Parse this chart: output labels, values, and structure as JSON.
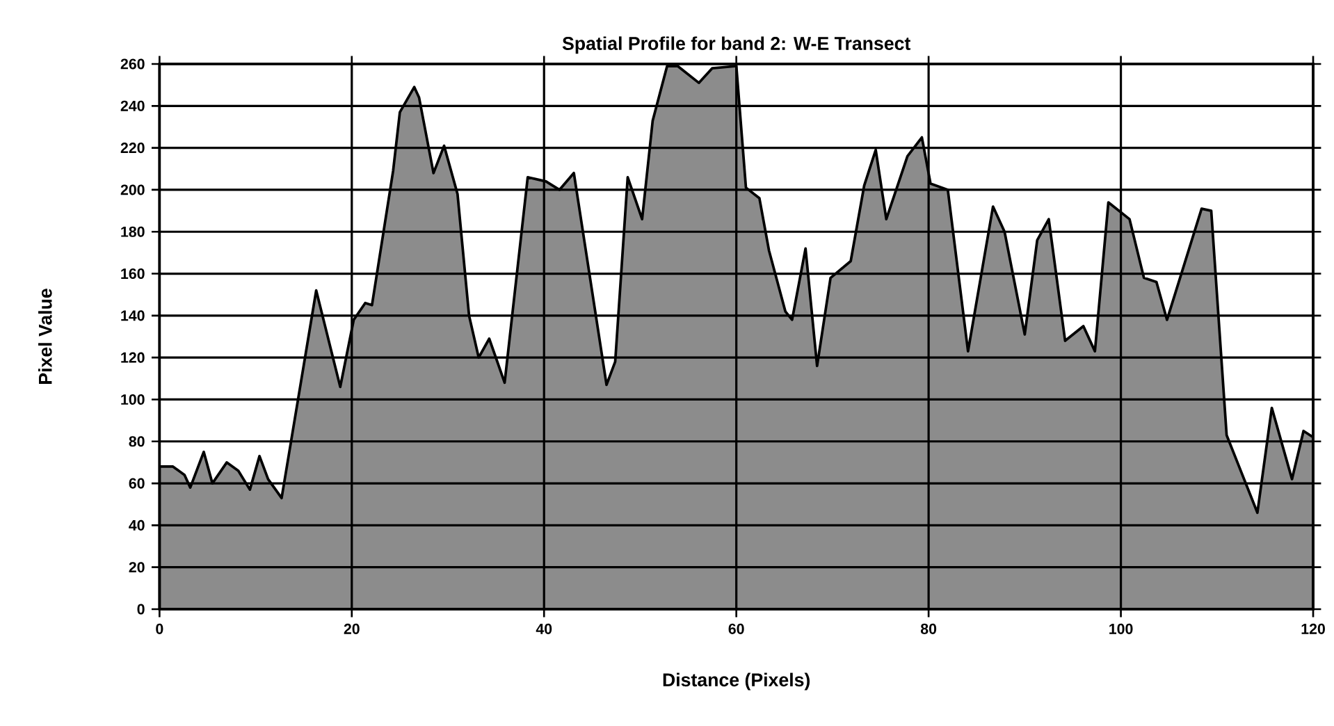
{
  "chart_data": {
    "type": "area",
    "title": "Spatial Profile for band 2: W-E Transect",
    "xlabel": "Distance (Pixels)",
    "ylabel": "Pixel Value",
    "color": "#8c8c8c",
    "grid": true,
    "xlim": [
      0,
      120
    ],
    "ylim": [
      0,
      260
    ],
    "xticks": [
      0,
      20,
      40,
      60,
      80,
      100,
      120
    ],
    "yticks": [
      0,
      20,
      40,
      60,
      80,
      100,
      120,
      140,
      160,
      180,
      200,
      220,
      240,
      260
    ],
    "x": [
      0,
      1.4,
      2.6,
      3.2,
      4.6,
      5.5,
      7,
      8.2,
      9.4,
      10.4,
      11.3,
      12.7,
      16.3,
      18.8,
      20.2,
      21.4,
      22.1,
      24.3,
      25,
      26.5,
      27,
      28.5,
      29.6,
      31,
      32.2,
      33.2,
      34.3,
      35.9,
      38.3,
      40.2,
      41.6,
      43.1,
      46.5,
      47.4,
      48.7,
      50.2,
      51.3,
      52.8,
      53.9,
      56.1,
      57.5,
      60,
      61,
      62.4,
      63.4,
      65.1,
      65.8,
      67.2,
      68.4,
      69.8,
      71.9,
      73.3,
      74.5,
      75.6,
      77.8,
      79.3,
      80.2,
      82,
      84.1,
      86.7,
      87.9,
      90,
      91.3,
      92.5,
      94.2,
      96.1,
      97.3,
      98.7,
      100.9,
      102.4,
      103.7,
      104.8,
      108.4,
      109.4,
      111,
      114.2,
      115.7,
      117.8,
      119,
      120
    ],
    "values": [
      68,
      68,
      64,
      58,
      75,
      60,
      70,
      66,
      57,
      73,
      62,
      53,
      152,
      106,
      138,
      146,
      145,
      209,
      237,
      249,
      244,
      208,
      221,
      198,
      140,
      120,
      129,
      108,
      206,
      204,
      200,
      208,
      107,
      118,
      206,
      186,
      233,
      259,
      259,
      251,
      258,
      259,
      201,
      196,
      171,
      142,
      138,
      172,
      116,
      158,
      166,
      202,
      219,
      186,
      216,
      225,
      203,
      200,
      123,
      192,
      180,
      131,
      176,
      186,
      128,
      135,
      123,
      194,
      186,
      158,
      156,
      138,
      191,
      190,
      83,
      46,
      96,
      62,
      85,
      82
    ]
  }
}
